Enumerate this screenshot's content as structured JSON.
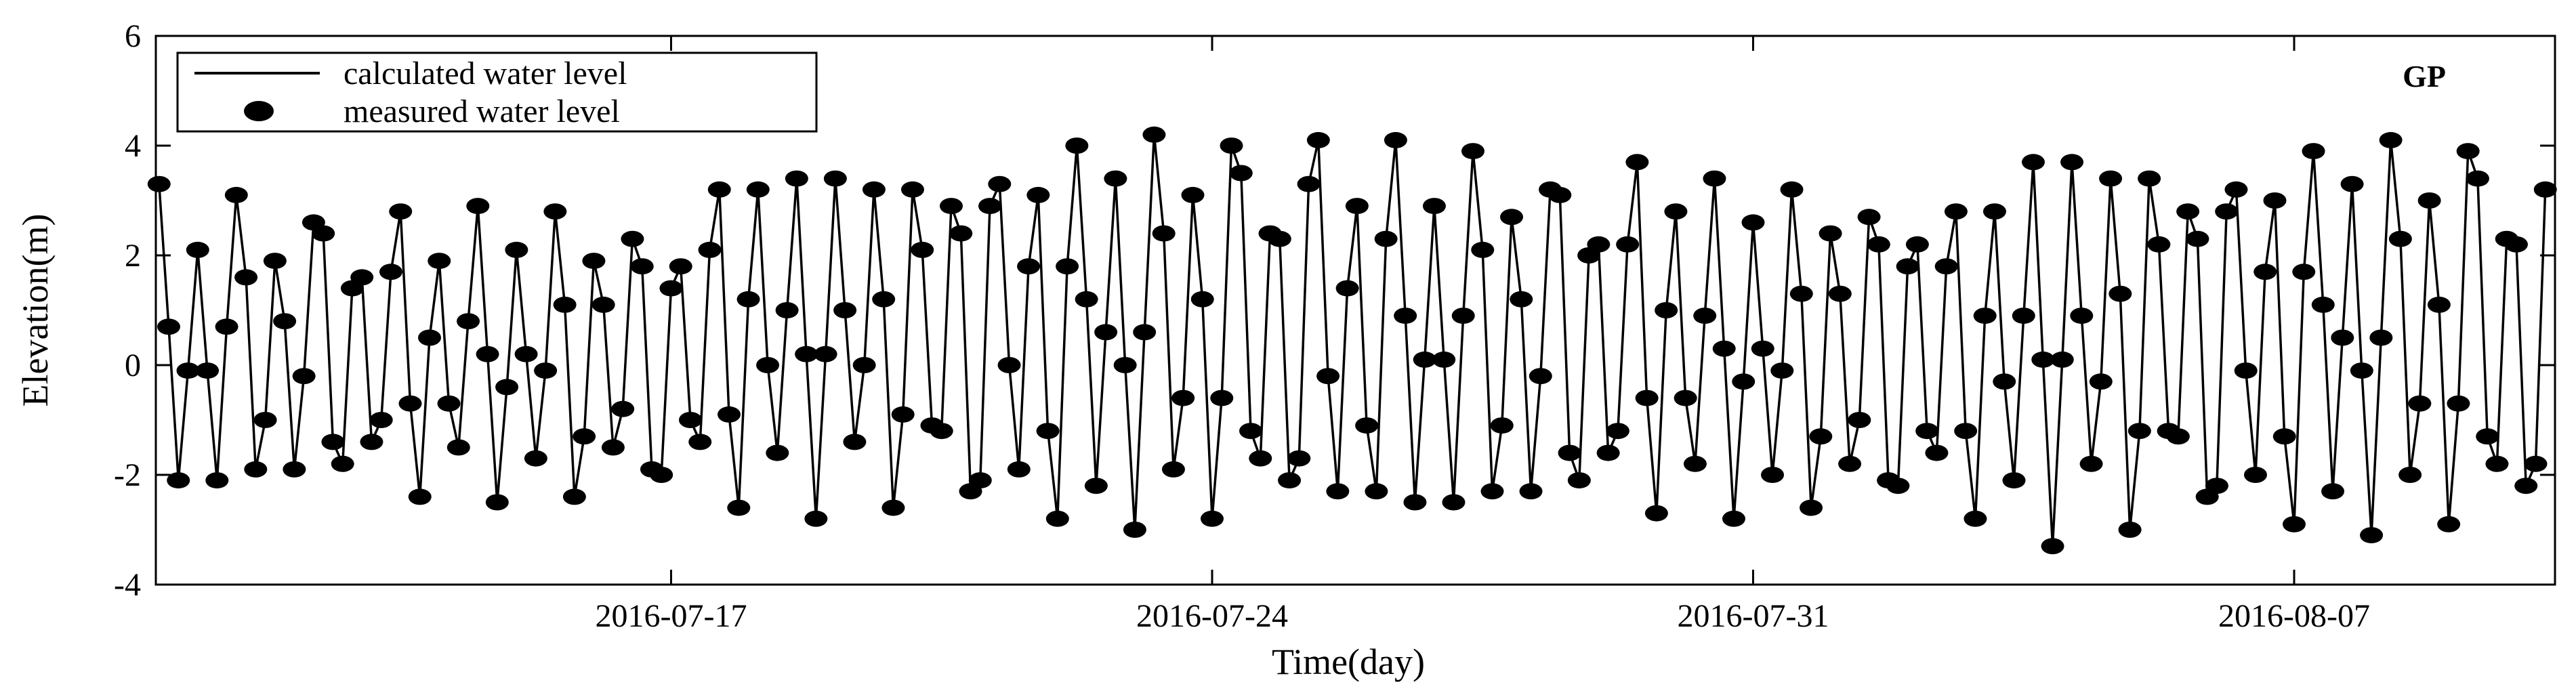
{
  "chart_data": {
    "type": "line",
    "xlabel": "Time(day)",
    "ylabel": "Elevation(m)",
    "annotation": "GP",
    "legend": "upper left",
    "xlim": [
      "2016-07-10 08:00",
      "2016-08-10 09:00"
    ],
    "xticks": [
      "2016-07-17",
      "2016-07-24",
      "2016-07-31",
      "2016-08-07"
    ],
    "ylim": [
      -4,
      6
    ],
    "yticks": [
      -4,
      -2,
      0,
      2,
      4,
      6
    ],
    "x": [
      "2016-07-10 09:00",
      "2016-07-10 12:00",
      "2016-07-10 15:00",
      "2016-07-10 18:00",
      "2016-07-10 21:00",
      "2016-07-11 00:00",
      "2016-07-11 03:00",
      "2016-07-11 06:00",
      "2016-07-11 09:00",
      "2016-07-11 12:00",
      "2016-07-11 15:00",
      "2016-07-11 18:00",
      "2016-07-11 21:00",
      "2016-07-12 00:00",
      "2016-07-12 03:00",
      "2016-07-12 06:00",
      "2016-07-12 09:00",
      "2016-07-12 12:00",
      "2016-07-12 15:00",
      "2016-07-12 18:00",
      "2016-07-12 21:00",
      "2016-07-13 00:00",
      "2016-07-13 03:00",
      "2016-07-13 06:00",
      "2016-07-13 09:00",
      "2016-07-13 12:00",
      "2016-07-13 15:00",
      "2016-07-13 18:00",
      "2016-07-13 21:00",
      "2016-07-14 00:00",
      "2016-07-14 03:00",
      "2016-07-14 06:00",
      "2016-07-14 09:00",
      "2016-07-14 12:00",
      "2016-07-14 15:00",
      "2016-07-14 18:00",
      "2016-07-14 21:00",
      "2016-07-15 00:00",
      "2016-07-15 03:00",
      "2016-07-15 06:00",
      "2016-07-15 09:00",
      "2016-07-15 12:00",
      "2016-07-15 15:00",
      "2016-07-15 18:00",
      "2016-07-15 21:00",
      "2016-07-16 00:00",
      "2016-07-16 03:00",
      "2016-07-16 06:00",
      "2016-07-16 09:00",
      "2016-07-16 12:00",
      "2016-07-16 15:00",
      "2016-07-16 18:00",
      "2016-07-16 21:00",
      "2016-07-17 00:00",
      "2016-07-17 03:00",
      "2016-07-17 06:00",
      "2016-07-17 09:00",
      "2016-07-17 12:00",
      "2016-07-17 15:00",
      "2016-07-17 18:00",
      "2016-07-17 21:00",
      "2016-07-18 00:00",
      "2016-07-18 03:00",
      "2016-07-18 06:00",
      "2016-07-18 09:00",
      "2016-07-18 12:00",
      "2016-07-18 15:00",
      "2016-07-18 18:00",
      "2016-07-18 21:00",
      "2016-07-19 00:00",
      "2016-07-19 03:00",
      "2016-07-19 06:00",
      "2016-07-19 09:00",
      "2016-07-19 12:00",
      "2016-07-19 15:00",
      "2016-07-19 18:00",
      "2016-07-19 21:00",
      "2016-07-20 00:00",
      "2016-07-20 03:00",
      "2016-07-20 06:00",
      "2016-07-20 09:00",
      "2016-07-20 12:00",
      "2016-07-20 15:00",
      "2016-07-20 18:00",
      "2016-07-20 21:00",
      "2016-07-21 00:00",
      "2016-07-21 03:00",
      "2016-07-21 06:00",
      "2016-07-21 09:00",
      "2016-07-21 12:00",
      "2016-07-21 15:00",
      "2016-07-21 18:00",
      "2016-07-21 21:00",
      "2016-07-22 00:00",
      "2016-07-22 03:00",
      "2016-07-22 06:00",
      "2016-07-22 09:00",
      "2016-07-22 12:00",
      "2016-07-22 15:00",
      "2016-07-22 18:00",
      "2016-07-22 21:00",
      "2016-07-23 00:00",
      "2016-07-23 03:00",
      "2016-07-23 06:00",
      "2016-07-23 09:00",
      "2016-07-23 12:00",
      "2016-07-23 15:00",
      "2016-07-23 18:00",
      "2016-07-23 21:00",
      "2016-07-24 00:00",
      "2016-07-24 03:00",
      "2016-07-24 06:00",
      "2016-07-24 09:00",
      "2016-07-24 12:00",
      "2016-07-24 15:00",
      "2016-07-24 18:00",
      "2016-07-24 21:00",
      "2016-07-25 00:00",
      "2016-07-25 03:00",
      "2016-07-25 06:00",
      "2016-07-25 09:00",
      "2016-07-25 12:00",
      "2016-07-25 15:00",
      "2016-07-25 18:00",
      "2016-07-25 21:00",
      "2016-07-26 00:00",
      "2016-07-26 03:00",
      "2016-07-26 06:00",
      "2016-07-26 09:00",
      "2016-07-26 12:00",
      "2016-07-26 15:00",
      "2016-07-26 18:00",
      "2016-07-26 21:00",
      "2016-07-27 00:00",
      "2016-07-27 03:00",
      "2016-07-27 06:00",
      "2016-07-27 09:00",
      "2016-07-27 12:00",
      "2016-07-27 15:00",
      "2016-07-27 18:00",
      "2016-07-27 21:00",
      "2016-07-28 00:00",
      "2016-07-28 03:00",
      "2016-07-28 06:00",
      "2016-07-28 09:00",
      "2016-07-28 12:00",
      "2016-07-28 15:00",
      "2016-07-28 18:00",
      "2016-07-28 21:00",
      "2016-07-29 00:00",
      "2016-07-29 03:00",
      "2016-07-29 06:00",
      "2016-07-29 09:00",
      "2016-07-29 12:00",
      "2016-07-29 15:00",
      "2016-07-29 18:00",
      "2016-07-29 21:00",
      "2016-07-30 00:00",
      "2016-07-30 03:00",
      "2016-07-30 06:00",
      "2016-07-30 09:00",
      "2016-07-30 12:00",
      "2016-07-30 15:00",
      "2016-07-30 18:00",
      "2016-07-30 21:00",
      "2016-07-31 00:00",
      "2016-07-31 03:00",
      "2016-07-31 06:00",
      "2016-07-31 09:00",
      "2016-07-31 12:00",
      "2016-07-31 15:00",
      "2016-07-31 18:00",
      "2016-07-31 21:00",
      "2016-08-01 00:00",
      "2016-08-01 03:00",
      "2016-08-01 06:00",
      "2016-08-01 09:00",
      "2016-08-01 12:00",
      "2016-08-01 15:00",
      "2016-08-01 18:00",
      "2016-08-01 21:00",
      "2016-08-02 00:00",
      "2016-08-02 03:00",
      "2016-08-02 06:00",
      "2016-08-02 09:00",
      "2016-08-02 12:00",
      "2016-08-02 15:00",
      "2016-08-02 18:00",
      "2016-08-02 21:00",
      "2016-08-03 00:00",
      "2016-08-03 03:00",
      "2016-08-03 06:00",
      "2016-08-03 09:00",
      "2016-08-03 12:00",
      "2016-08-03 15:00",
      "2016-08-03 18:00",
      "2016-08-03 21:00",
      "2016-08-04 00:00",
      "2016-08-04 03:00",
      "2016-08-04 06:00",
      "2016-08-04 09:00",
      "2016-08-04 12:00",
      "2016-08-04 15:00",
      "2016-08-04 18:00",
      "2016-08-04 21:00",
      "2016-08-05 00:00",
      "2016-08-05 03:00",
      "2016-08-05 06:00",
      "2016-08-05 09:00",
      "2016-08-05 12:00",
      "2016-08-05 15:00",
      "2016-08-05 18:00",
      "2016-08-05 21:00",
      "2016-08-06 00:00",
      "2016-08-06 03:00",
      "2016-08-06 06:00",
      "2016-08-06 09:00",
      "2016-08-06 12:00",
      "2016-08-06 15:00",
      "2016-08-06 18:00",
      "2016-08-06 21:00",
      "2016-08-07 00:00",
      "2016-08-07 03:00",
      "2016-08-07 06:00",
      "2016-08-07 09:00",
      "2016-08-07 12:00",
      "2016-08-07 15:00",
      "2016-08-07 18:00",
      "2016-08-07 21:00",
      "2016-08-08 00:00",
      "2016-08-08 03:00",
      "2016-08-08 06:00",
      "2016-08-08 09:00",
      "2016-08-08 12:00",
      "2016-08-08 15:00",
      "2016-08-08 18:00",
      "2016-08-08 21:00",
      "2016-08-09 00:00",
      "2016-08-09 03:00",
      "2016-08-09 06:00",
      "2016-08-09 09:00",
      "2016-08-09 12:00",
      "2016-08-09 15:00",
      "2016-08-09 18:00",
      "2016-08-09 21:00",
      "2016-08-10 00:00",
      "2016-08-10 03:00",
      "2016-08-10 06:00"
    ],
    "series": [
      {
        "name": "calculated water level",
        "style": "line",
        "color": "#000000",
        "values": [
          3.3,
          0.7,
          -2.1,
          -0.1,
          2.1,
          -0.1,
          -2.1,
          0.7,
          3.1,
          1.6,
          -1.9,
          -1.0,
          1.9,
          0.8,
          -1.9,
          -0.2,
          2.6,
          2.4,
          -1.4,
          -1.8,
          1.4,
          1.6,
          -1.4,
          -1.0,
          1.7,
          2.8,
          -0.7,
          -2.4,
          0.5,
          1.9,
          -0.7,
          -1.5,
          0.8,
          2.9,
          0.2,
          -2.5,
          -0.4,
          2.1,
          0.2,
          -1.7,
          -0.1,
          2.8,
          1.1,
          -2.4,
          -1.3,
          1.9,
          1.1,
          -1.5,
          -0.8,
          2.3,
          1.8,
          -1.9,
          -2.0,
          1.4,
          1.8,
          -1.0,
          -1.4,
          2.1,
          3.2,
          -0.9,
          -2.6,
          1.2,
          3.2,
          0.0,
          -1.6,
          1.0,
          3.4,
          0.2,
          -2.8,
          0.2,
          3.4,
          1.0,
          -1.4,
          0.0,
          3.2,
          1.2,
          -2.6,
          -0.9,
          3.2,
          2.1,
          -1.1,
          -1.2,
          2.9,
          2.4,
          -2.3,
          -2.1,
          2.9,
          3.3,
          0.0,
          -1.9,
          1.8,
          3.1,
          -1.2,
          -2.8,
          1.8,
          4.0,
          1.2,
          -2.2,
          0.6,
          3.4,
          0.0,
          -3.0,
          0.6,
          4.2,
          2.4,
          -1.9,
          -0.6,
          3.1,
          1.2,
          -2.8,
          -0.6,
          4.0,
          3.5,
          -1.2,
          -1.7,
          2.4,
          2.3,
          -2.1,
          -1.7,
          3.3,
          4.1,
          -0.2,
          -2.3,
          1.4,
          2.9,
          -1.1,
          -2.3,
          2.3,
          4.1,
          0.9,
          -2.5,
          0.1,
          2.9,
          0.1,
          -2.5,
          0.9,
          3.9,
          2.1,
          -2.3,
          -1.1,
          2.7,
          1.2,
          -2.3,
          -0.2,
          3.2,
          3.1,
          -1.6,
          -2.1,
          2.0,
          2.2,
          -1.6,
          -1.2,
          2.2,
          3.7,
          -0.6,
          -2.7,
          1.0,
          2.8,
          -0.6,
          -1.8,
          0.9,
          3.4,
          0.3,
          -2.8,
          -0.3,
          2.6,
          0.3,
          -2.0,
          -0.1,
          3.2,
          1.3,
          -2.6,
          -1.3,
          2.4,
          1.3,
          -1.8,
          -1.0,
          2.7,
          2.2,
          -2.1,
          -2.2,
          1.8,
          2.2,
          -1.2,
          -1.6,
          1.8,
          2.8,
          -1.2,
          -2.8,
          0.9,
          2.8,
          -0.3,
          -2.1,
          0.9,
          3.7,
          0.1,
          -3.3,
          0.1,
          3.7,
          0.9,
          -1.8,
          -0.3,
          3.4,
          1.3,
          -3.0,
          -1.2,
          3.4,
          2.2,
          -1.2,
          -1.3,
          2.8,
          2.3,
          -2.4,
          -2.2,
          2.8,
          3.2,
          -0.1,
          -2.0,
          1.7,
          3.0,
          -1.3,
          -2.9,
          1.7,
          3.9,
          1.1,
          -2.3,
          0.5,
          3.3,
          -0.1,
          -3.1,
          0.5,
          4.1,
          2.3,
          -2.0,
          -0.7,
          3.0,
          1.1,
          -2.9,
          -0.7,
          3.9,
          3.4,
          -1.3,
          -1.8,
          2.3,
          2.2,
          -2.2,
          -1.8,
          3.2
        ]
      },
      {
        "name": "measured water level",
        "style": "marker",
        "color": "#000000",
        "values": [
          3.3,
          0.7,
          -2.1,
          -0.1,
          2.1,
          -0.1,
          -2.1,
          0.7,
          3.1,
          1.6,
          -1.9,
          -1.0,
          1.9,
          0.8,
          -1.9,
          -0.2,
          2.6,
          2.4,
          -1.4,
          -1.8,
          1.4,
          1.6,
          -1.4,
          -1.0,
          1.7,
          2.8,
          -0.7,
          -2.4,
          0.5,
          1.9,
          -0.7,
          -1.5,
          0.8,
          2.9,
          0.2,
          -2.5,
          -0.4,
          2.1,
          0.2,
          -1.7,
          -0.1,
          2.8,
          1.1,
          -2.4,
          -1.3,
          1.9,
          1.1,
          -1.5,
          -0.8,
          2.3,
          1.8,
          -1.9,
          -2.0,
          1.4,
          1.8,
          -1.0,
          -1.4,
          2.1,
          3.2,
          -0.9,
          -2.6,
          1.2,
          3.2,
          0.0,
          -1.6,
          1.0,
          3.4,
          0.2,
          -2.8,
          0.2,
          3.4,
          1.0,
          -1.4,
          0.0,
          3.2,
          1.2,
          -2.6,
          -0.9,
          3.2,
          2.1,
          -1.1,
          -1.2,
          2.9,
          2.4,
          -2.3,
          -2.1,
          2.9,
          3.3,
          0.0,
          -1.9,
          1.8,
          3.1,
          -1.2,
          -2.8,
          1.8,
          4.0,
          1.2,
          -2.2,
          0.6,
          3.4,
          0.0,
          -3.0,
          0.6,
          4.2,
          2.4,
          -1.9,
          -0.6,
          3.1,
          1.2,
          -2.8,
          -0.6,
          4.0,
          3.5,
          -1.2,
          -1.7,
          2.4,
          2.3,
          -2.1,
          -1.7,
          3.3,
          4.1,
          -0.2,
          -2.3,
          1.4,
          2.9,
          -1.1,
          -2.3,
          2.3,
          4.1,
          0.9,
          -2.5,
          0.1,
          2.9,
          0.1,
          -2.5,
          0.9,
          3.9,
          2.1,
          -2.3,
          -1.1,
          2.7,
          1.2,
          -2.3,
          -0.2,
          3.2,
          3.1,
          -1.6,
          -2.1,
          2.0,
          2.2,
          -1.6,
          -1.2,
          2.2,
          3.7,
          -0.6,
          -2.7,
          1.0,
          2.8,
          -0.6,
          -1.8,
          0.9,
          3.4,
          0.3,
          -2.8,
          -0.3,
          2.6,
          0.3,
          -2.0,
          -0.1,
          3.2,
          1.3,
          -2.6,
          -1.3,
          2.4,
          1.3,
          -1.8,
          -1.0,
          2.7,
          2.2,
          -2.1,
          -2.2,
          1.8,
          2.2,
          -1.2,
          -1.6,
          1.8,
          2.8,
          -1.2,
          -2.8,
          0.9,
          2.8,
          -0.3,
          -2.1,
          0.9,
          3.7,
          0.1,
          -3.3,
          0.1,
          3.7,
          0.9,
          -1.8,
          -0.3,
          3.4,
          1.3,
          -3.0,
          -1.2,
          3.4,
          2.2,
          -1.2,
          -1.3,
          2.8,
          2.3,
          -2.4,
          -2.2,
          2.8,
          3.2,
          -0.1,
          -2.0,
          1.7,
          3.0,
          -1.3,
          -2.9,
          1.7,
          3.9,
          1.1,
          -2.3,
          0.5,
          3.3,
          -0.1,
          -3.1,
          0.5,
          4.1,
          2.3,
          -2.0,
          -0.7,
          3.0,
          1.1,
          -2.9,
          -0.7,
          3.9,
          3.4,
          -1.3,
          -1.8,
          2.3,
          2.2,
          -2.2,
          -1.8,
          3.2
        ]
      }
    ]
  }
}
